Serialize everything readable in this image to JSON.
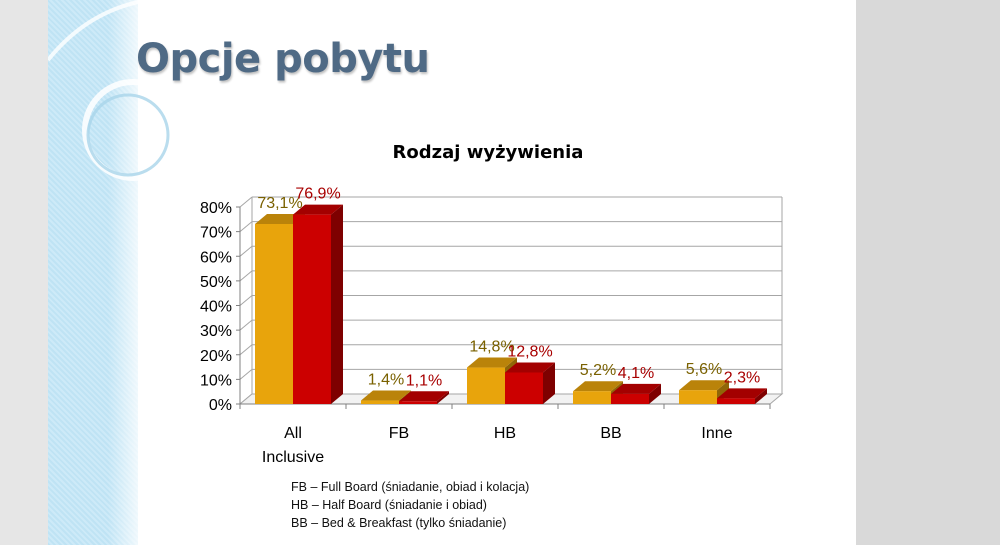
{
  "slide": {
    "title": "Opcje pobytu",
    "footnotes": [
      "FB – Full Board (śniadanie, obiad i kolacja)",
      "HB – Half Board (śniadanie i obiad)",
      "BB – Bed & Breakfast (tylko śniadanie)"
    ]
  },
  "chart_data": {
    "type": "bar",
    "title": "Rodzaj wyżywienia",
    "categories": [
      [
        "All",
        "Inclusive"
      ],
      [
        "FB"
      ],
      [
        "HB"
      ],
      [
        "BB"
      ],
      [
        "Inne"
      ]
    ],
    "series": [
      {
        "values": [
          73.1,
          1.4,
          14.8,
          5.2,
          5.6
        ],
        "labels": [
          "73,1%",
          "1,4%",
          "14,8%",
          "5,2%",
          "5,6%"
        ],
        "color": "#e8a40c",
        "label_color": "#7a6100"
      },
      {
        "values": [
          76.9,
          1.1,
          12.8,
          4.1,
          2.3
        ],
        "labels": [
          "76,9%",
          "1,1%",
          "12,8%",
          "4,1%",
          "2,3%"
        ],
        "color": "#cc0000",
        "label_color": "#a80000"
      }
    ],
    "y_ticks": [
      "0%",
      "10%",
      "20%",
      "30%",
      "40%",
      "50%",
      "60%",
      "70%",
      "80%"
    ],
    "ylim": [
      0,
      80
    ],
    "grid": true,
    "legend": "none"
  }
}
